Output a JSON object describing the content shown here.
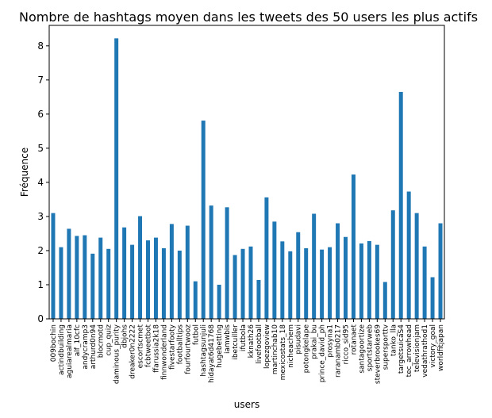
{
  "chart_data": {
    "type": "bar",
    "title": "Nombre de hashtags moyen dans les tweets des 50 users les plus actifs",
    "xlabel": "users",
    "ylabel": "Fréquence",
    "ylim": [
      0,
      8.6
    ],
    "yticks": [
      "0",
      "1",
      "2",
      "3",
      "4",
      "5",
      "6",
      "7",
      "8"
    ],
    "grid": false,
    "legend": "none",
    "bar_color": "#1f77b4",
    "categories": [
      "009bochin",
      "actindbuilding",
      "aguiarealmaria",
      "alf_10cfc",
      "andycramp3",
      "arthurd0n94",
      "blocmotd",
      "cup_quiz",
      "daminous_purity",
      "dbjohs",
      "dreaker0n2222",
      "escortscmet",
      "fcbtweetbot",
      "ffarussia2k18",
      "finnwonderland",
      "fivestarfooty",
      "footballtips",
      "fourfourtwooz",
      "futbol",
      "hashtagsunjuli",
      "hidayat6d41768",
      "hugebetting",
      "iamwbis",
      "ibetcuiller",
      "ifutbola",
      "kknath26",
      "livefootball",
      "lopezgoview",
      "martinchab10",
      "mexicostats_18",
      "nicheachem",
      "pisudavi",
      "potongkelape",
      "prakai_bu",
      "prince_david_ph",
      "prosyna1",
      "raranamb0217",
      "ricco_sid95",
      "rotanaet",
      "santagoortize",
      "sportstarweb",
      "steverbrookes69",
      "supersporttv",
      "tanko_lla",
      "targetsuicaS4",
      "tec_arrowhead",
      "televisionjam",
      "vedathrathod1",
      "victory_goal",
      "worldfitjapan"
    ],
    "values": [
      3.1,
      2.1,
      2.64,
      2.43,
      2.45,
      1.91,
      2.38,
      2.05,
      8.22,
      2.68,
      2.17,
      3.01,
      2.3,
      2.38,
      2.07,
      2.78,
      2.0,
      2.73,
      1.1,
      5.81,
      3.32,
      1.0,
      3.27,
      1.87,
      2.05,
      2.12,
      1.14,
      3.56,
      2.85,
      2.27,
      1.98,
      2.54,
      2.07,
      3.08,
      2.03,
      2.1,
      2.8,
      2.4,
      4.23,
      2.21,
      2.28,
      2.17,
      1.08,
      3.18,
      6.65,
      3.73,
      3.1,
      2.12,
      1.22,
      2.8
    ]
  }
}
